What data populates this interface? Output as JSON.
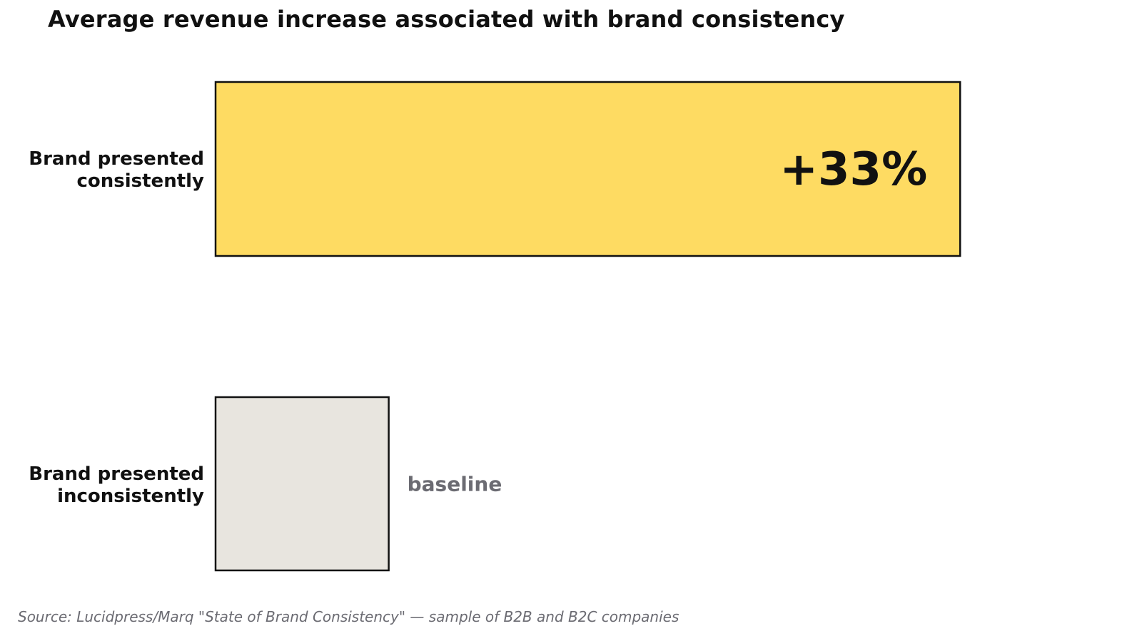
{
  "chart_data": {
    "type": "bar",
    "orientation": "horizontal",
    "title": "Average revenue increase associated with brand consistency",
    "categories": [
      "Brand presented\nconsistently",
      "Brand presented\ninconsistently"
    ],
    "values": [
      133,
      100
    ],
    "data_labels": [
      "+33%",
      "baseline"
    ],
    "bar_colors": [
      "#FEDB62",
      "#E8E5DF"
    ],
    "label_colors": [
      "#111111",
      "#6B6B72"
    ],
    "outline_color": "#111111",
    "xlim": [
      90,
      136
    ],
    "grid": false,
    "legend": "none"
  },
  "source": "Source: Lucidpress/Marq \"State of Brand Consistency\" — sample of B2B and B2C companies"
}
